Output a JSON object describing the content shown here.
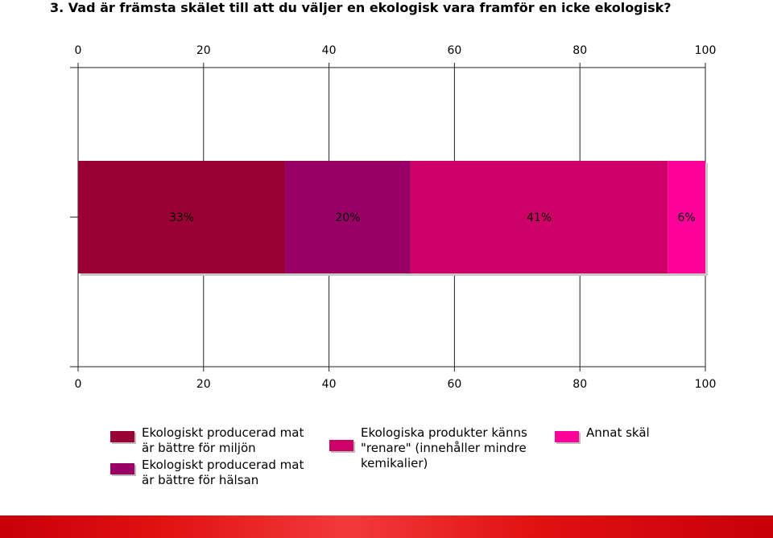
{
  "title": "3. Vad är främsta skälet till att du väljer en ekologisk vara framför en icke ekologisk?",
  "chart_data": {
    "type": "bar",
    "orientation": "horizontal",
    "stacked": true,
    "title": "3. Vad är främsta skälet till att du väljer en ekologisk vara framför en icke ekologisk?",
    "xlim": [
      0,
      100
    ],
    "xticks": [
      "0",
      "20",
      "40",
      "60",
      "80",
      "100"
    ],
    "grid": true,
    "legend_position": "bottom",
    "series": [
      {
        "name": "Ekologiskt producerad mat är bättre för miljön",
        "legend_lines": [
          "Ekologiskt producerad mat",
          "är bättre för miljön"
        ],
        "value": 33,
        "label": "33%",
        "color": "#990033"
      },
      {
        "name": "Ekologiskt producerad mat är bättre för hälsan",
        "legend_lines": [
          "Ekologiskt producerad mat",
          "är bättre för hälsan"
        ],
        "value": 20,
        "label": "20%",
        "color": "#990066"
      },
      {
        "name": "Ekologiska produkter känns \"renare\" (innehåller mindre kemikalier)",
        "legend_lines": [
          "Ekologiska produkter känns",
          "\"renare\" (innehåller mindre",
          "kemikalier)"
        ],
        "value": 41,
        "label": "41%",
        "color": "#cc0066"
      },
      {
        "name": "Annat skäl",
        "legend_lines": [
          "Annat skäl"
        ],
        "value": 6,
        "label": "6%",
        "color": "#ff0099"
      }
    ]
  }
}
